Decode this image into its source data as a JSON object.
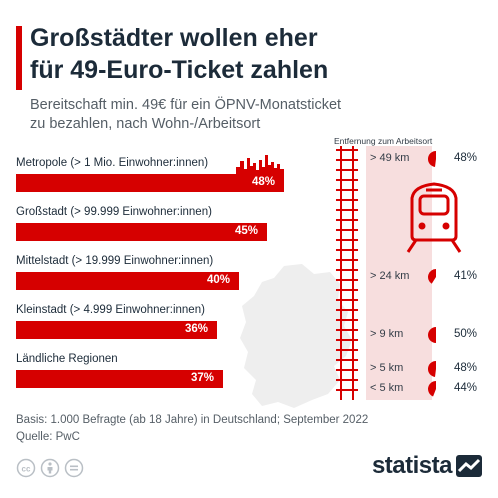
{
  "title": "Großstädter wollen eher\nfür 49-Euro-Ticket zahlen",
  "subtitle": "Bereitschaft min. 49€ für ein ÖPNV-Monatsticket\nzu bezahlen, nach Wohn-/Arbeitsort",
  "colors": {
    "accent": "#d60000",
    "text": "#1c2b39",
    "muted": "#555e66",
    "panel": "#f7dede",
    "map": "#eeeeee"
  },
  "icons": [
    "skyline-icon",
    "germany-map-icon",
    "rail-track-icon",
    "train-icon",
    "cc-license-icon",
    "by-attribution-icon",
    "nd-license-icon",
    "statista-logo-icon"
  ],
  "chart_data": [
    {
      "type": "bar",
      "orientation": "horizontal",
      "categories": [
        "Metropole (> 1 Mio. Einwohner:innen)",
        "Großstadt (> 99.999 Einwohner:innen)",
        "Mittelstadt (> 19.999 Einwohner:innen)",
        "Kleinstadt (> 4.999 Einwohner:innen)",
        "Ländliche Regionen"
      ],
      "values": [
        48,
        45,
        40,
        36,
        37
      ],
      "labels": [
        "48%",
        "45%",
        "40%",
        "36%",
        "37%"
      ],
      "unit": "%"
    },
    {
      "type": "pie",
      "header": "Entfernung zum Arbeitsort",
      "categories": [
        "> 49 km",
        "> 24 km",
        "> 9 km",
        "> 5 km",
        "< 5 km"
      ],
      "values": [
        48,
        41,
        50,
        48,
        44
      ],
      "labels": [
        "48%",
        "41%",
        "50%",
        "48%",
        "44%"
      ],
      "unit": "%"
    }
  ],
  "footer": {
    "basis": "Basis: 1.000 Befragte (ab 18 Jahre) in Deutschland; September 2022",
    "source": "Quelle: PwC"
  },
  "logo": {
    "text": "statista"
  }
}
